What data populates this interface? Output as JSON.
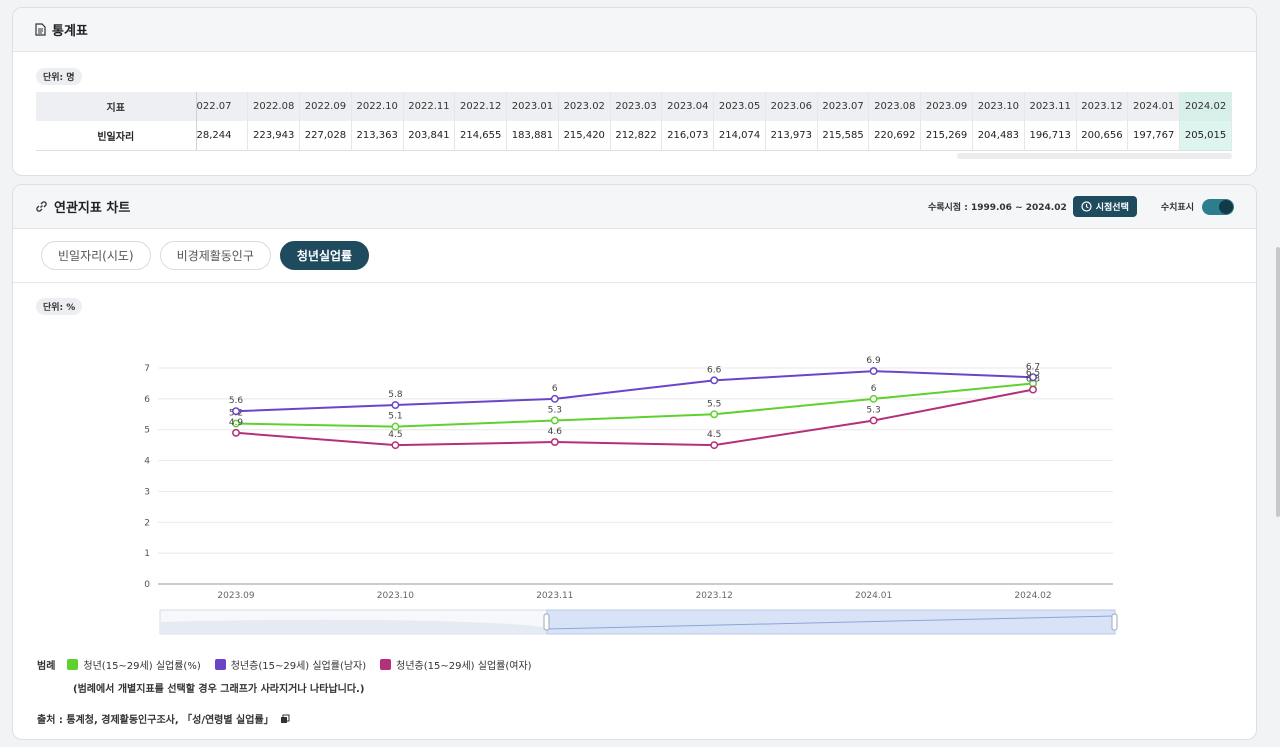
{
  "table_panel": {
    "title": "통계표",
    "unit": "단위: 명",
    "header_label": "지표",
    "row_label": "빈일자리",
    "columns": [
      "022.07",
      "2022.08",
      "2022.09",
      "2022.10",
      "2022.11",
      "2022.12",
      "2023.01",
      "2023.02",
      "2023.03",
      "2023.04",
      "2023.05",
      "2023.06",
      "2023.07",
      "2023.08",
      "2023.09",
      "2023.10",
      "2023.11",
      "2023.12",
      "2024.01",
      "2024.02"
    ],
    "values": [
      "28,244",
      "223,943",
      "227,028",
      "213,363",
      "203,841",
      "214,655",
      "183,881",
      "215,420",
      "212,822",
      "216,073",
      "214,074",
      "213,973",
      "215,585",
      "220,692",
      "215,269",
      "204,483",
      "196,713",
      "200,656",
      "197,767",
      "205,015"
    ],
    "highlight_color": "#def4ef"
  },
  "chart_panel": {
    "title": "연관지표 차트",
    "period_label": "수록시점 : 1999.06 ~ 2024.02",
    "period_button": "시점선택",
    "toggle_label": "수치표시",
    "tabs": [
      "빈일자리(시도)",
      "비경제활동인구",
      "청년실업률"
    ],
    "active_tab": 2,
    "unit": "단위: %",
    "legend_title": "범례",
    "legend_note": "(범례에서 개별지표를 선택할 경우 그래프가 사라지거나 나타납니다.)",
    "source": "출처 :  통계청, 경제활동인구조사, 「성/연령별 실업률」",
    "accent": "#1f4b5f"
  },
  "chart_data": {
    "type": "line",
    "x": [
      "2023.09",
      "2023.10",
      "2023.11",
      "2023.12",
      "2024.01",
      "2024.02"
    ],
    "ylim": [
      0,
      7
    ],
    "yticks": [
      0,
      1,
      2,
      3,
      4,
      5,
      6,
      7
    ],
    "grid": true,
    "series": [
      {
        "name": "청년(15~29세) 실업률(%)",
        "color": "#5fd12f",
        "values": [
          5.2,
          5.1,
          5.3,
          5.5,
          6,
          6.5
        ]
      },
      {
        "name": "청년층(15~29세) 실업률(남자)",
        "color": "#6a45c8",
        "values": [
          5.6,
          5.8,
          6,
          6.6,
          6.9,
          6.7
        ]
      },
      {
        "name": "청년층(15~29세) 실업률(여자)",
        "color": "#b3307a",
        "values": [
          4.9,
          4.5,
          4.6,
          4.5,
          5.3,
          6.3
        ]
      }
    ]
  }
}
